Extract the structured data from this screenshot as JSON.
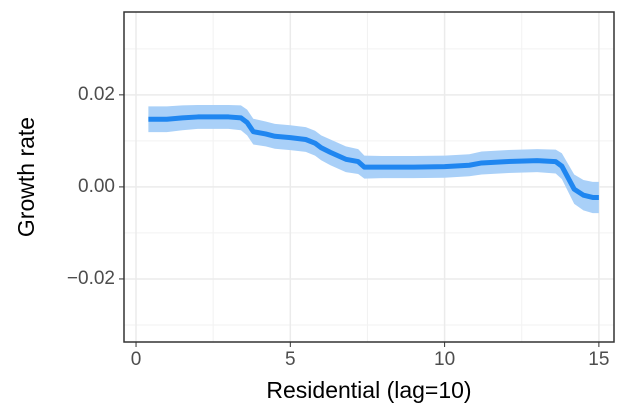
{
  "chart_data": {
    "type": "line",
    "xlabel": "Residential (lag=10)",
    "ylabel": "Growth rate",
    "x": [
      0.4,
      1.0,
      1.5,
      2.0,
      3.0,
      3.4,
      3.6,
      3.8,
      4.2,
      4.5,
      5.0,
      5.5,
      5.8,
      6.0,
      6.3,
      6.8,
      7.2,
      7.4,
      8.0,
      9.0,
      10.0,
      10.8,
      11.2,
      12.0,
      13.0,
      13.6,
      13.8,
      14.0,
      14.2,
      14.5,
      14.8,
      15.0
    ],
    "series": [
      {
        "color": "#1f86f0",
        "band_color": "#a9d0f8",
        "values": [
          0.0147,
          0.0147,
          0.015,
          0.0152,
          0.0152,
          0.015,
          0.014,
          0.012,
          0.0115,
          0.011,
          0.0107,
          0.0103,
          0.0095,
          0.0085,
          0.0075,
          0.006,
          0.0055,
          0.0043,
          0.0043,
          0.0043,
          0.0044,
          0.0047,
          0.0052,
          0.0055,
          0.0057,
          0.0055,
          0.0045,
          0.002,
          -0.0005,
          -0.0018,
          -0.0023,
          -0.0023
        ],
        "upper": [
          0.0175,
          0.0175,
          0.0177,
          0.0178,
          0.0178,
          0.0177,
          0.0168,
          0.0148,
          0.0142,
          0.0137,
          0.0134,
          0.013,
          0.0122,
          0.0112,
          0.0103,
          0.0088,
          0.0082,
          0.0068,
          0.0067,
          0.0067,
          0.0068,
          0.0071,
          0.0077,
          0.008,
          0.0082,
          0.0081,
          0.0073,
          0.005,
          0.0027,
          0.0015,
          0.0011,
          0.0011
        ],
        "lower": [
          0.0119,
          0.0119,
          0.0123,
          0.0126,
          0.0126,
          0.0123,
          0.0112,
          0.0092,
          0.0088,
          0.0083,
          0.008,
          0.0076,
          0.0068,
          0.0058,
          0.0047,
          0.0032,
          0.0028,
          0.0018,
          0.0019,
          0.0019,
          0.002,
          0.0023,
          0.0027,
          0.003,
          0.0032,
          0.0029,
          0.0017,
          -0.001,
          -0.0037,
          -0.0051,
          -0.0057,
          -0.0057
        ]
      }
    ],
    "xlim": [
      -0.39,
      15.49
    ],
    "ylim": [
      -0.0337,
      0.038
    ],
    "xticks": [
      0,
      5,
      10,
      15
    ],
    "yticks": [
      {
        "value": -0.02,
        "label": "−0.02"
      },
      {
        "value": 0,
        "label": "0.00"
      },
      0.02
    ],
    "xminor": [
      2.5,
      7.5,
      12.5
    ],
    "yminor": [
      -0.03,
      -0.01,
      0.01,
      0.03
    ],
    "grid": true
  }
}
